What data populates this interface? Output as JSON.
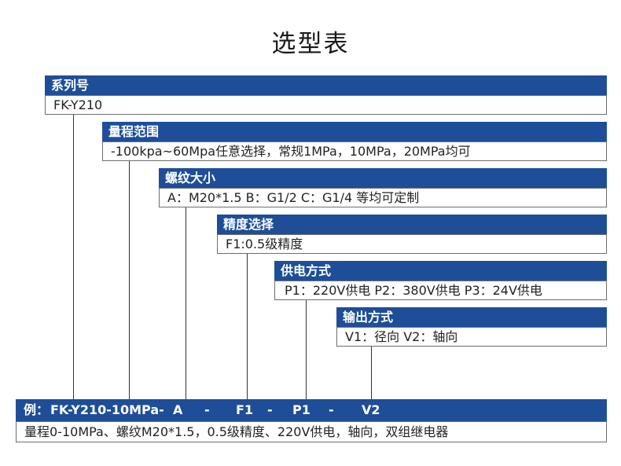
{
  "title": "选型表",
  "levels": [
    {
      "header": "系列号",
      "value": "FK-Y210"
    },
    {
      "header": "量程范围",
      "value": "-100kpa~60Mpa任意选择，常规1MPa，10MPa，20MPa均可"
    },
    {
      "header": "螺纹大小",
      "value": "A：M20*1.5  B：G1/2   C：G1/4 等均可定制"
    },
    {
      "header": "精度选择",
      "value": "F1:0.5级精度"
    },
    {
      "header": "供电方式",
      "value": "P1：220V供电  P2：380V供电  P3：24V供电"
    },
    {
      "header": "输出方式",
      "value": "V1：径向  V2：轴向"
    }
  ],
  "example": {
    "prefix": "例：",
    "model_code": "FK-Y210-10MPa-",
    "thread": "A",
    "sep1": "-",
    "accuracy": "F1",
    "sep2": "-",
    "power": "P1",
    "sep3": "-",
    "output": "V2",
    "description": "量程0-10MPa、螺纹M20*1.5，0.5级精度、220V供电，轴向，双组继电器"
  }
}
